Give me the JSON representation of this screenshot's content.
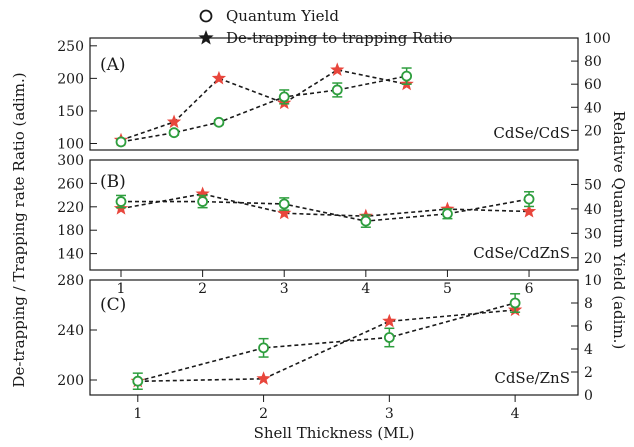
{
  "chart_data": {
    "type": "line",
    "legend": {
      "position": "top-center",
      "entries": [
        {
          "symbol": "circle",
          "label": "Quantum Yield"
        },
        {
          "symbol": "star",
          "label": "De-trapping to trapping Ratio"
        }
      ]
    },
    "ylabel_left": "De-trapping / Trapping rate Ratio (adim.)",
    "ylabel_right": "Relative Quantum Yield (adim.)",
    "xlabel": "Shell Thickness (ML)",
    "colors": {
      "circle": "#2e9e3e",
      "star": "#e8463c",
      "line": "#1a1a1a"
    },
    "panels": [
      {
        "tag": "(A)",
        "material": "CdSe/CdS",
        "x_ticks_shown": false,
        "xlim": [
          0.62,
          6.6
        ],
        "ylim_left": [
          90,
          262
        ],
        "yticks_left": [
          100,
          150,
          200,
          250
        ],
        "ylim_right": [
          3,
          100
        ],
        "yticks_right": [
          20,
          40,
          60,
          80,
          100
        ],
        "quantum_yield": {
          "x": [
            1,
            1.65,
            2.2,
            3.0,
            3.65,
            4.5
          ],
          "y": [
            10,
            18,
            27,
            49,
            55,
            67
          ],
          "err": [
            1.5,
            2,
            2,
            6,
            6,
            7
          ]
        },
        "ratio": {
          "x": [
            1,
            1.65,
            2.2,
            3.0,
            3.65,
            4.5
          ],
          "y": [
            105,
            133,
            200,
            162,
            213,
            191
          ]
        }
      },
      {
        "tag": "(B)",
        "material": "CdSe/CdZnS",
        "x_ticks_shown": true,
        "xlim": [
          0.62,
          6.6
        ],
        "x_ticks": [
          1,
          2,
          3,
          4,
          5,
          6
        ],
        "ylim_left": [
          112,
          300
        ],
        "yticks_left": [
          140,
          180,
          220,
          260,
          300
        ],
        "ylim_right": [
          15,
          60
        ],
        "yticks_right": [
          20,
          30,
          40,
          50
        ],
        "quantum_yield": {
          "x": [
            1,
            2,
            3,
            4,
            5,
            6
          ],
          "y": [
            43,
            43,
            42,
            35,
            38,
            44
          ],
          "err": [
            2.5,
            2.5,
            2.5,
            2.5,
            2,
            3
          ]
        },
        "ratio": {
          "x": [
            1,
            2,
            3,
            4,
            5,
            6
          ],
          "y": [
            217,
            242,
            209,
            204,
            216,
            212
          ]
        }
      },
      {
        "tag": "(C)",
        "material": "CdSe/ZnS",
        "x_ticks_shown": true,
        "xlim": [
          0.62,
          4.5
        ],
        "x_ticks": [
          1,
          2,
          3,
          4
        ],
        "ylim_left": [
          188,
          280
        ],
        "yticks_left": [
          200,
          240,
          280
        ],
        "ylim_right": [
          0,
          10
        ],
        "yticks_right": [
          0,
          2,
          4,
          6,
          8,
          10
        ],
        "quantum_yield": {
          "x": [
            1,
            2,
            3,
            4
          ],
          "y": [
            1.2,
            4.1,
            5.0,
            8.0
          ],
          "err": [
            0.7,
            0.8,
            0.8,
            0.8
          ]
        },
        "ratio": {
          "x": [
            1,
            2,
            3,
            4
          ],
          "y": [
            199,
            201,
            247,
            256
          ]
        }
      }
    ]
  }
}
